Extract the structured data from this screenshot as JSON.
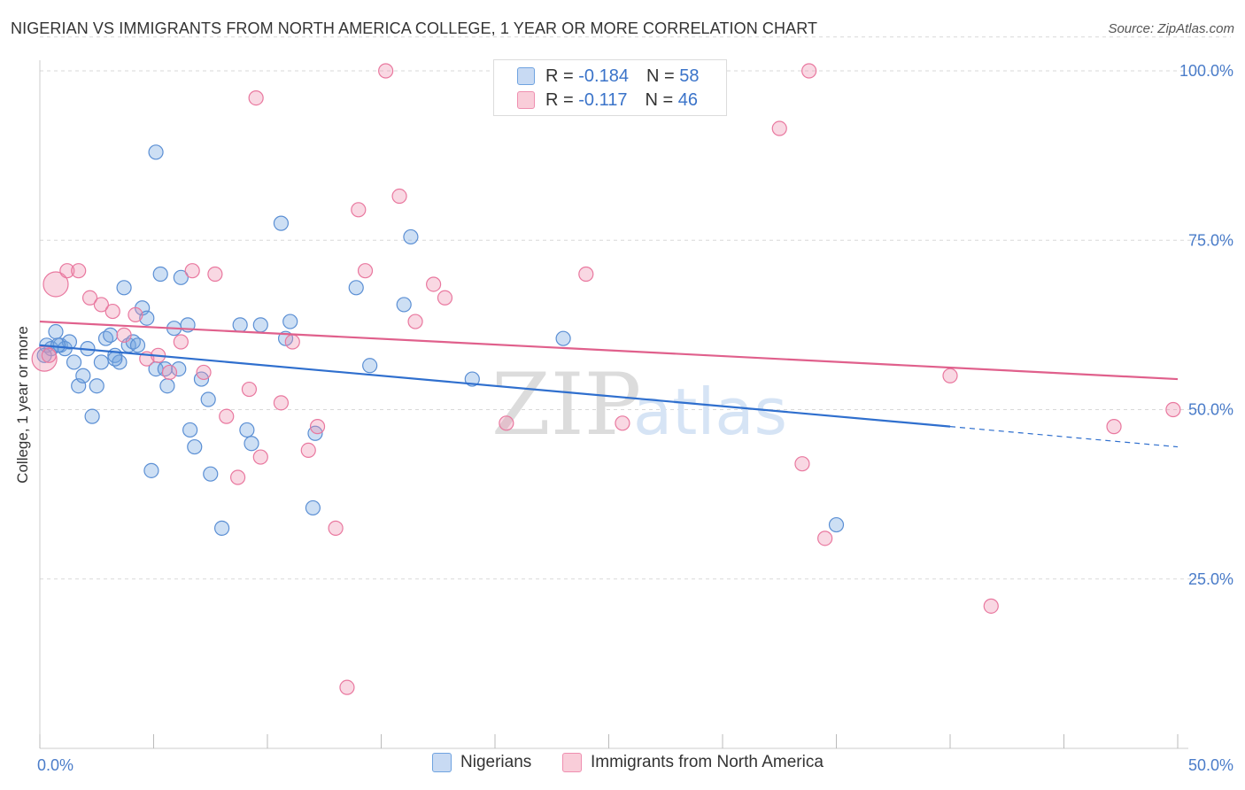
{
  "header": {
    "title": "NIGERIAN VS IMMIGRANTS FROM NORTH AMERICA COLLEGE, 1 YEAR OR MORE CORRELATION CHART",
    "source": "Source: ZipAtlas.com"
  },
  "watermark": {
    "zip": "ZIP",
    "atlas": "atlas"
  },
  "legend": {
    "r_label": "R =",
    "n_label": "N =",
    "rows": [
      {
        "r": "-0.184",
        "n": "58",
        "color": "#6fa3e0"
      },
      {
        "r": "-0.117",
        "n": "46",
        "color": "#ef8fb0"
      }
    ]
  },
  "chart_data": {
    "type": "scatter",
    "ylabel": "College, 1 year or more",
    "xlim": [
      0,
      50
    ],
    "ylim": [
      0,
      105
    ],
    "x_tick_labels": [
      "0.0%",
      "50.0%"
    ],
    "y_ticks": [
      25,
      50,
      75,
      100
    ],
    "y_tick_labels": [
      "25.0%",
      "50.0%",
      "75.0%",
      "100.0%"
    ],
    "grid": true,
    "series": [
      {
        "name": "Nigerians",
        "color": "#6fa3e0",
        "stroke": "#5b8fd4",
        "trend": {
          "x0": 0,
          "y0": 59.5,
          "x1": 40,
          "y1": 47.5,
          "dash_to_x": 50,
          "dash_to_y": 44.5,
          "color": "#2f6fce"
        },
        "points": [
          [
            0.3,
            59.5
          ],
          [
            0.5,
            59
          ],
          [
            0.7,
            61.5
          ],
          [
            0.9,
            59.5
          ],
          [
            1.1,
            59
          ],
          [
            1.3,
            60
          ],
          [
            1.5,
            57
          ],
          [
            1.7,
            53.5
          ],
          [
            1.9,
            55
          ],
          [
            2.1,
            59
          ],
          [
            2.3,
            49
          ],
          [
            2.5,
            53.5
          ],
          [
            2.7,
            57
          ],
          [
            2.9,
            60.5
          ],
          [
            3.1,
            61
          ],
          [
            3.3,
            58
          ],
          [
            3.5,
            57
          ],
          [
            3.7,
            68
          ],
          [
            3.9,
            59.5
          ],
          [
            4.1,
            60
          ],
          [
            4.3,
            59.5
          ],
          [
            4.5,
            65
          ],
          [
            4.7,
            63.5
          ],
          [
            4.9,
            41
          ],
          [
            5.1,
            56
          ],
          [
            5.1,
            88
          ],
          [
            5.3,
            70
          ],
          [
            5.5,
            56
          ],
          [
            5.6,
            53.5
          ],
          [
            5.9,
            62
          ],
          [
            6.1,
            56
          ],
          [
            6.2,
            69.5
          ],
          [
            6.5,
            62.5
          ],
          [
            6.6,
            47
          ],
          [
            6.8,
            44.5
          ],
          [
            7.1,
            54.5
          ],
          [
            7.4,
            51.5
          ],
          [
            7.5,
            40.5
          ],
          [
            8.0,
            32.5
          ],
          [
            8.8,
            62.5
          ],
          [
            9.1,
            47
          ],
          [
            9.3,
            45
          ],
          [
            9.7,
            62.5
          ],
          [
            10.6,
            77.5
          ],
          [
            10.8,
            60.5
          ],
          [
            11.0,
            63
          ],
          [
            12.0,
            35.5
          ],
          [
            12.1,
            46.5
          ],
          [
            13.9,
            68
          ],
          [
            14.5,
            56.5
          ],
          [
            16.0,
            65.5
          ],
          [
            16.3,
            75.5
          ],
          [
            19.0,
            54.5
          ],
          [
            23.0,
            60.5
          ],
          [
            35.0,
            33
          ],
          [
            0.2,
            58
          ],
          [
            0.8,
            59.5
          ],
          [
            3.3,
            57.5
          ]
        ]
      },
      {
        "name": "Immigrants from North America",
        "color": "#ef8fb0",
        "stroke": "#e9789f",
        "trend": {
          "x0": 0,
          "y0": 63,
          "x1": 50,
          "y1": 54.5,
          "color": "#e0608c"
        },
        "points": [
          [
            0.2,
            57.5
          ],
          [
            0.7,
            68.5
          ],
          [
            1.2,
            70.5
          ],
          [
            1.7,
            70.5
          ],
          [
            2.2,
            66.5
          ],
          [
            2.7,
            65.5
          ],
          [
            3.2,
            64.5
          ],
          [
            3.7,
            61
          ],
          [
            4.2,
            64
          ],
          [
            4.7,
            57.5
          ],
          [
            5.2,
            58
          ],
          [
            5.7,
            55.5
          ],
          [
            6.2,
            60
          ],
          [
            6.7,
            70.5
          ],
          [
            7.2,
            55.5
          ],
          [
            7.7,
            70
          ],
          [
            8.2,
            49
          ],
          [
            8.7,
            40
          ],
          [
            9.2,
            53
          ],
          [
            9.7,
            43
          ],
          [
            9.5,
            96
          ],
          [
            10.6,
            51
          ],
          [
            11.1,
            60
          ],
          [
            11.8,
            44
          ],
          [
            12.2,
            47.5
          ],
          [
            13.0,
            32.5
          ],
          [
            13.5,
            9
          ],
          [
            14.0,
            79.5
          ],
          [
            14.3,
            70.5
          ],
          [
            15.2,
            100
          ],
          [
            15.8,
            81.5
          ],
          [
            16.5,
            63
          ],
          [
            17.3,
            68.5
          ],
          [
            17.8,
            66.5
          ],
          [
            20.5,
            48
          ],
          [
            24.0,
            70
          ],
          [
            25.6,
            48
          ],
          [
            32.5,
            91.5
          ],
          [
            33.5,
            42
          ],
          [
            33.8,
            100
          ],
          [
            34.5,
            31
          ],
          [
            40.0,
            55
          ],
          [
            41.8,
            21
          ],
          [
            47.2,
            47.5
          ],
          [
            49.8,
            50
          ],
          [
            0.4,
            58
          ]
        ]
      }
    ]
  },
  "bottom_legend": {
    "items": [
      {
        "label": "Nigerians",
        "color": "#6fa3e0"
      },
      {
        "label": "Immigrants from North America",
        "color": "#ef8fb0"
      }
    ]
  }
}
